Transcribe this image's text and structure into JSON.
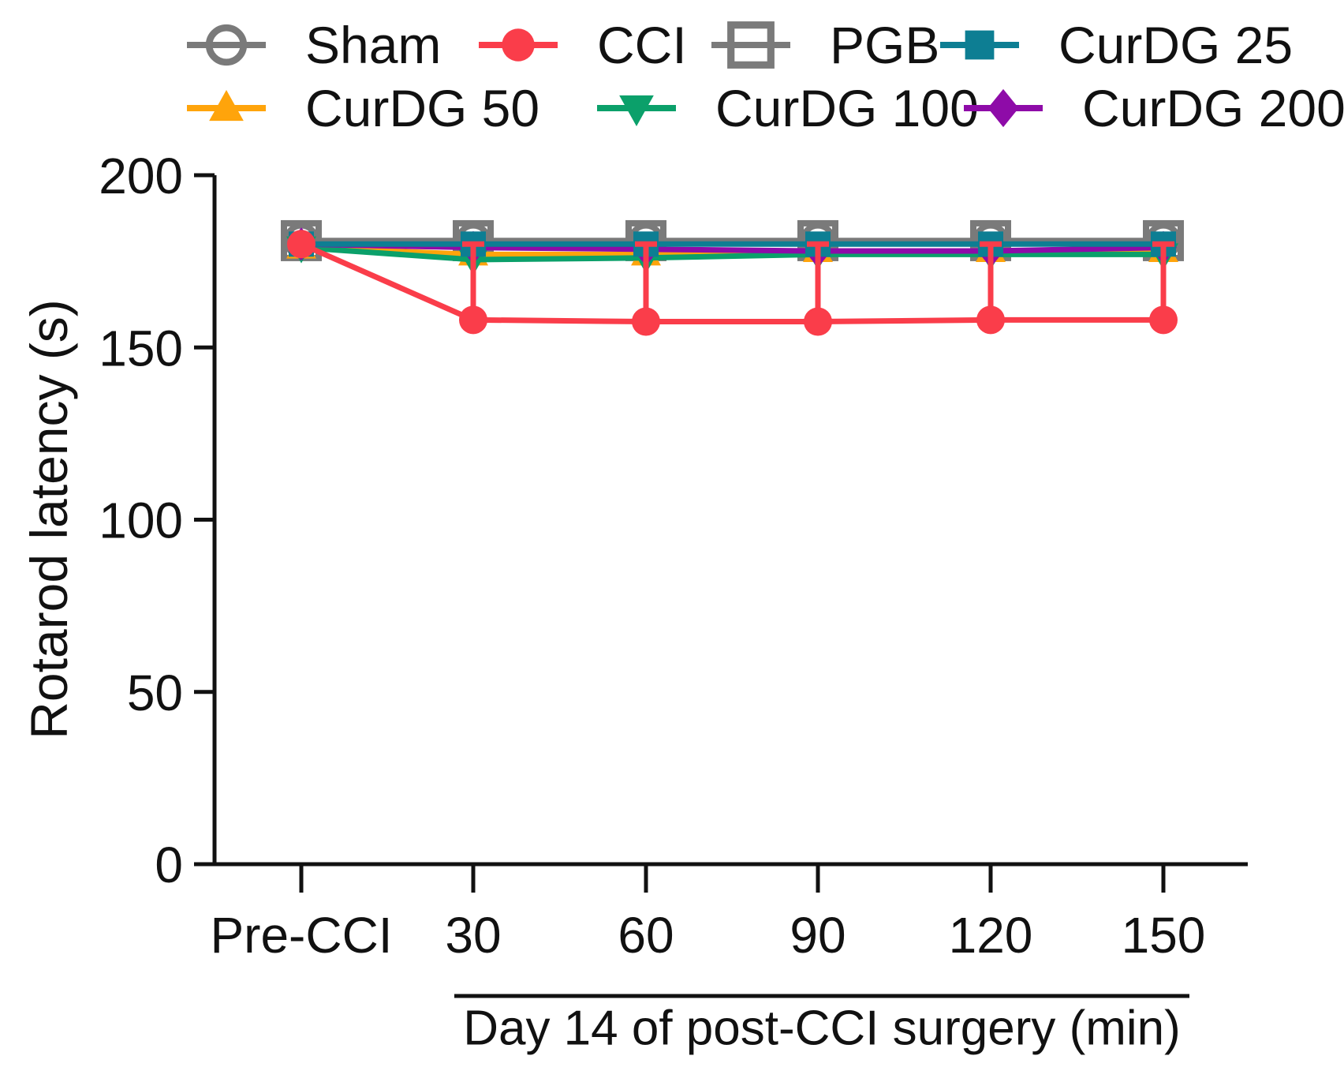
{
  "figure": {
    "background": "#ffffff",
    "text_color": "#111111"
  },
  "chart_data": {
    "type": "line",
    "title": "",
    "xlabel": "Day 14 of post-CCI surgery (min)",
    "ylabel": "Rotarod latency (s)",
    "categories": [
      "Pre-CCI",
      "30",
      "60",
      "90",
      "120",
      "150"
    ],
    "y_ticks": [
      0,
      50,
      100,
      150,
      200
    ],
    "ylim": [
      0,
      200
    ],
    "grid": "off",
    "legend_position": "top",
    "legend_rows": [
      [
        "Sham",
        "CCI",
        "PGB",
        "CurDG 25"
      ],
      [
        "CurDG 50",
        "CurDG 100",
        "CurDG 200"
      ]
    ],
    "xlabel_underline_covers": [
      "30",
      "150"
    ],
    "series": [
      {
        "name": "Sham",
        "color": "#7a7a7a",
        "marker": "open-circle",
        "values": [
          181,
          181,
          181,
          181,
          181,
          181
        ]
      },
      {
        "name": "CCI",
        "color": "#fa3d4a",
        "marker": "filled-circle",
        "values": [
          180,
          158,
          157.5,
          157.5,
          158,
          158
        ],
        "err_up": [
          0,
          22,
          22.5,
          22.5,
          22,
          22
        ]
      },
      {
        "name": "PGB",
        "color": "#7a7a7a",
        "marker": "open-square",
        "values": [
          181,
          181,
          181,
          181,
          181,
          181
        ]
      },
      {
        "name": "CurDG 25",
        "color": "#0d7e93",
        "marker": "filled-square",
        "values": [
          180,
          180,
          180,
          180,
          180,
          180
        ]
      },
      {
        "name": "CurDG 50",
        "color": "#ffa40b",
        "marker": "triangle-up",
        "values": [
          179,
          177,
          177,
          178,
          178,
          178
        ]
      },
      {
        "name": "CurDG 100",
        "color": "#0ba06a",
        "marker": "triangle-down",
        "values": [
          179,
          175.5,
          176,
          177,
          177,
          177
        ]
      },
      {
        "name": "CurDG 200",
        "color": "#8e0ba8",
        "marker": "diamond",
        "values": [
          180,
          179,
          178.5,
          178,
          178,
          179
        ]
      }
    ],
    "axis_color": "#111111"
  }
}
